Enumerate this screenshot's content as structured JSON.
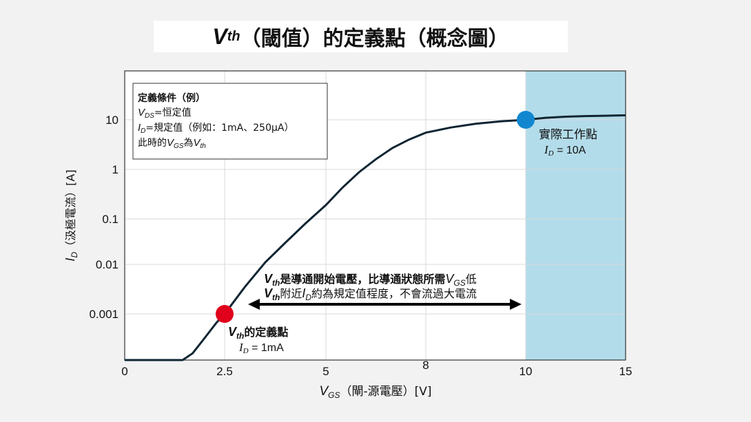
{
  "title": {
    "v": "V",
    "sub": "th",
    "rest": "（閾值）的定義點（概念圖）"
  },
  "chart_data": {
    "type": "line",
    "xscale": "linear",
    "yscale": "log",
    "xlim": [
      0,
      15
    ],
    "ylim": [
      0.0001,
      80
    ],
    "x_ticks": [
      0,
      2.5,
      5,
      8,
      10,
      15
    ],
    "x_tick_labels": [
      "0",
      "2.5",
      "5",
      "8",
      "10",
      "15"
    ],
    "y_ticks": [
      10,
      1,
      0.1,
      0.01,
      0.001
    ],
    "y_tick_labels": [
      "10",
      "1",
      "0.1",
      "0.01",
      "0.001"
    ],
    "grid": true,
    "xlabel": {
      "v": "V",
      "sub": "GS",
      "rest": "（閘-源電壓）[V]"
    },
    "ylabel": {
      "v": "I",
      "sub": "D",
      "rest": "（汲極電流）[A]"
    },
    "shaded_region": {
      "x_from": 10,
      "x_to": 15,
      "color": "#b3dcea"
    },
    "series": [
      {
        "color": "#0f2533",
        "points": [
          [
            0,
            0.0001
          ],
          [
            1.45,
            0.0001
          ],
          [
            1.7,
            0.00014
          ],
          [
            2.0,
            0.0003
          ],
          [
            2.3,
            0.00065
          ],
          [
            2.5,
            0.001
          ],
          [
            3.0,
            0.0035
          ],
          [
            3.5,
            0.011
          ],
          [
            4.0,
            0.03
          ],
          [
            4.5,
            0.08
          ],
          [
            5.0,
            0.19
          ],
          [
            5.5,
            0.43
          ],
          [
            6.0,
            0.88
          ],
          [
            6.5,
            1.6
          ],
          [
            7.0,
            2.7
          ],
          [
            7.5,
            4.0
          ],
          [
            8.0,
            5.5
          ],
          [
            8.5,
            7.0
          ],
          [
            9.0,
            8.3
          ],
          [
            9.5,
            9.3
          ],
          [
            10.0,
            10.0
          ],
          [
            11.0,
            10.9
          ],
          [
            12.0,
            11.4
          ],
          [
            13.0,
            11.7
          ],
          [
            14.0,
            11.9
          ],
          [
            15.0,
            12.1
          ]
        ]
      }
    ],
    "markers": [
      {
        "x": 2.5,
        "y": 0.001,
        "color": "#e0001b"
      },
      {
        "x": 10,
        "y": 10,
        "color": "#1287d0"
      }
    ]
  },
  "info_box": {
    "heading": "定義條件（例）",
    "line1": {
      "v": "V",
      "sub": "DS",
      "rest": "=恒定值"
    },
    "line2": {
      "v": "I",
      "sub": "D",
      "rest": "=規定值（例如：1mA、250μA）"
    },
    "line3": {
      "pre": "此時的",
      "v1": "V",
      "sub1": "GS",
      "mid": "為",
      "v2": "V",
      "sub2": "th"
    }
  },
  "operating_point": {
    "label": "實際工作點",
    "value": {
      "v": "I",
      "sub": "D",
      "rest": " = 10A"
    }
  },
  "vth_point": {
    "label": {
      "v": "V",
      "sub": "th",
      "rest": "的定義點"
    },
    "value": {
      "v": "I",
      "sub": "D",
      "rest": " = 1mA"
    }
  },
  "annotation": {
    "line1": {
      "v": "V",
      "sub": "th",
      "mid": "是導通開始電壓，比導通狀態所需",
      "v2": "V",
      "sub2": "GS",
      "end": "低"
    },
    "line2": {
      "v": "V",
      "sub": "th",
      "mid": "附近",
      "v2": "I",
      "sub2": "D",
      "end": "約為規定值程度，不會流過大電流"
    }
  },
  "colors": {
    "background": "#f2f2f2",
    "plot_bg": "#ffffff",
    "grid": "#d9d9d9",
    "curve": "#0f2533",
    "shade": "#b3dcea",
    "vth_marker": "#e0001b",
    "op_marker": "#1287d0"
  }
}
